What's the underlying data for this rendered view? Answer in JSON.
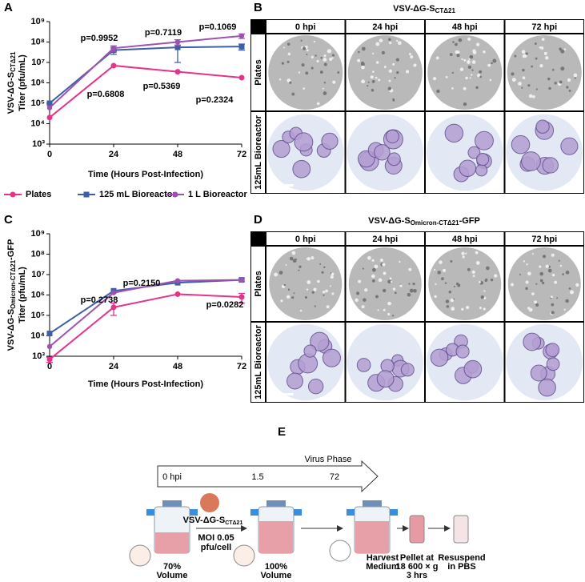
{
  "chart_data": [
    {
      "panel_label": "A",
      "type": "line",
      "ylabel": {
        "main": "VSV-ΔG-S",
        "sub": "CTΔ21",
        "line2": "Titer (pfu/mL)"
      },
      "xlabel": "Time (Hours Post-Infection)",
      "x": [
        0,
        24,
        48,
        72
      ],
      "xlim": [
        0,
        72
      ],
      "xticks": [
        0,
        24,
        48,
        72
      ],
      "ylim": [
        1000,
        1000000000
      ],
      "yscale": "log",
      "yticks": [
        {
          "value": 1000,
          "label": "10³"
        },
        {
          "value": 10000,
          "label": "10⁴"
        },
        {
          "value": 100000,
          "label": "10⁵"
        },
        {
          "value": 1000000,
          "label": "10⁶"
        },
        {
          "value": 10000000,
          "label": "10⁷"
        },
        {
          "value": 100000000,
          "label": "10⁸"
        },
        {
          "value": 1000000000,
          "label": "10⁹"
        }
      ],
      "series": [
        {
          "name": "Plates",
          "color": "#e5338b",
          "values": [
            20000,
            7000000,
            3500000,
            1800000
          ],
          "errors": [
            null,
            null,
            null,
            null
          ]
        },
        {
          "name": "125 mL Bioreactor",
          "color": "#3d5fa8",
          "values": [
            100000,
            40000000,
            55000000,
            60000000
          ],
          "errors": [
            null,
            15000000,
            45000000,
            20000000
          ]
        },
        {
          "name": "1 L Bioreactor",
          "color": "#9e52b0",
          "values": [
            60000,
            50000000,
            100000000,
            200000000
          ],
          "errors": [
            null,
            15000000,
            30000000,
            50000000
          ]
        }
      ],
      "annotations": [
        "p=0.9952",
        "p=0.7119",
        "p=0.1069",
        "p=0.6808",
        "p=0.5369",
        "p=0.2324"
      ],
      "legend": "bottom"
    },
    {
      "panel_label": "C",
      "type": "line",
      "ylabel": {
        "main": "VSV-ΔG-S",
        "sub": "Omicron-CTΔ21",
        "suffix": "-GFP",
        "line2": "Titer (pfu/mL)"
      },
      "xlabel": "Time (Hours Post-Infection)",
      "x": [
        0,
        24,
        48,
        72
      ],
      "xlim": [
        0,
        72
      ],
      "xticks": [
        0,
        24,
        48,
        72
      ],
      "ylim": [
        1000,
        1000000000
      ],
      "yscale": "log",
      "yticks": [
        {
          "value": 1000,
          "label": "10³"
        },
        {
          "value": 10000,
          "label": "10⁴"
        },
        {
          "value": 100000,
          "label": "10⁵"
        },
        {
          "value": 1000000,
          "label": "10⁶"
        },
        {
          "value": 10000000,
          "label": "10⁷"
        },
        {
          "value": 100000000,
          "label": "10⁸"
        },
        {
          "value": 1000000000,
          "label": "10⁹"
        }
      ],
      "series": [
        {
          "name": "Plates",
          "color": "#e5338b",
          "values": [
            700,
            250000,
            1100000,
            800000
          ],
          "errors": [
            200,
            150000,
            null,
            400000
          ]
        },
        {
          "name": "125 mL Bioreactor",
          "color": "#3d5fa8",
          "values": [
            13000,
            1600000,
            4000000,
            5500000
          ],
          "errors": [
            null,
            null,
            null,
            null
          ]
        },
        {
          "name": "1 L Bioreactor",
          "color": "#9e52b0",
          "values": [
            3000,
            1300000,
            5000000,
            5500000
          ],
          "errors": [
            null,
            null,
            null,
            1000000
          ]
        }
      ],
      "annotations": [
        "p=0.2738",
        "p=0.2150",
        "p=0.0282"
      ]
    }
  ],
  "panel_b": {
    "label": "B",
    "title": {
      "main": "VSV-ΔG-S",
      "sub": "CTΔ21"
    },
    "columns": [
      "0 hpi",
      "24 hpi",
      "48 hpi",
      "72 hpi"
    ],
    "rows": [
      "Plates",
      "125mL Bioreactor"
    ]
  },
  "panel_d": {
    "label": "D",
    "title": {
      "main": "VSV-ΔG-S",
      "sub": "Omicron-CTΔ21",
      "suffix": "-GFP"
    },
    "columns": [
      "0 hpi",
      "24 hpi",
      "48 hpi",
      "72 hpi"
    ],
    "rows": [
      "Plates",
      "125mL Bioreactor"
    ]
  },
  "panel_e": {
    "label": "E",
    "timeline_title": "Virus Phase",
    "timeline": [
      "0 hpi",
      "1.5",
      "72"
    ],
    "virus": {
      "main": "VSV-ΔG-S",
      "sub": "CTΔ21"
    },
    "moi": [
      "MOI 0.05",
      "pfu/cell"
    ],
    "steps": [
      [
        "70%",
        "Volume"
      ],
      [
        "100%",
        "Volume"
      ],
      [
        "Harvest",
        "Medium"
      ],
      [
        "Pellet at",
        "18 600 × g",
        "3 hrs"
      ],
      [
        "Resuspend",
        "in PBS"
      ]
    ]
  }
}
